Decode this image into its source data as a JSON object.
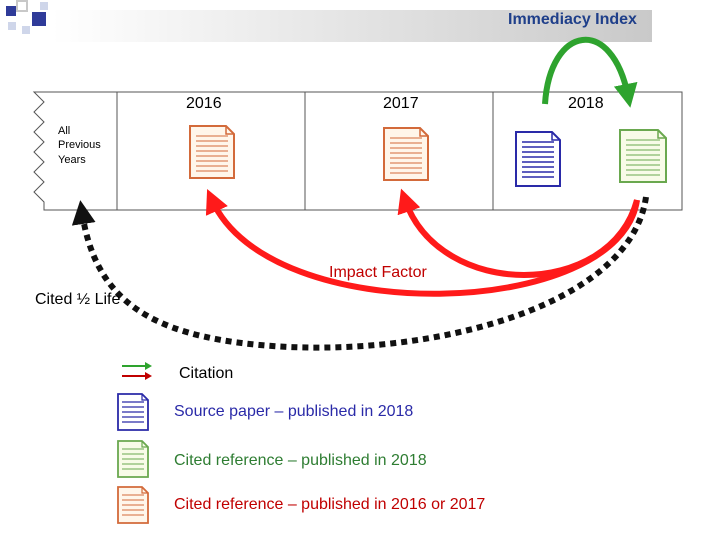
{
  "header": {
    "title": "Immediacy Index"
  },
  "timeline": {
    "all_previous_label": "All\nPrevious\nYears",
    "years": [
      "2016",
      "2017",
      "2018"
    ]
  },
  "labels": {
    "impact_factor": "Impact Factor",
    "cited_half_life": "Cited ½ Life"
  },
  "legend": {
    "citation": "Citation",
    "source_paper": "Source paper – published in 2018",
    "cited_2018": "Cited reference – published in 2018",
    "cited_2016_2017": "Cited reference – published in 2016 or 2017"
  },
  "colors": {
    "accent_blue": "#2f3b99",
    "header_text": "#1f3f8a",
    "impact_red": "#c00000",
    "arrow_red": "#ff1a1a",
    "arrow_green": "#2ea32e",
    "doc_orange": "#d36a3a",
    "doc_blue": "#2a2aa8",
    "doc_green": "#6aa84f",
    "legend_green_text": "#2e7d32",
    "legend_red_text": "#c00000",
    "dotted_black": "#111111"
  },
  "icons": {
    "header_squares": "decorative-squares-icon",
    "document": "document-icon",
    "arrow": "arrow-icon"
  }
}
